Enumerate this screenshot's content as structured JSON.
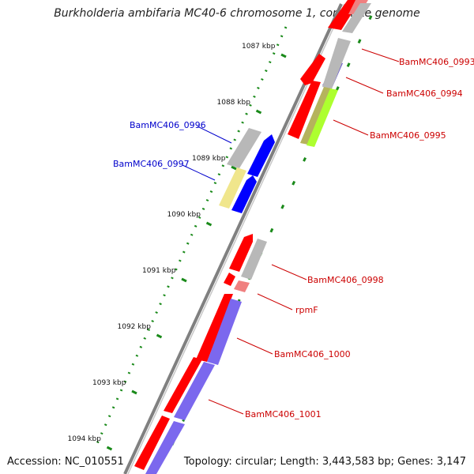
{
  "title": "Burkholderia ambifaria MC40-6 chromosome 1, complete genome",
  "accession_label": "Accession: NC_010551",
  "topology_text": "Topology: circular; Length: 3,443,583 bp; Genes: 3,147",
  "colors": {
    "forward_cds": "#ff0000",
    "reverse_cds": "#ff0000",
    "rna": "#f08080",
    "backbone": "#808080",
    "tick": "#1a8a1a",
    "label_red": "#cc0000",
    "label_blue": "#0000cc",
    "gray_feature": "#b8b8b8",
    "blue_feature": "#0000ff",
    "purple_feature": "#7b68ee",
    "lime_feature": "#adff2f",
    "olive_feature": "#b5b35c",
    "yellow_feature": "#f0e68c"
  },
  "scale_labels": [
    "1087 kbp",
    "1088 kbp",
    "1089 kbp",
    "1090 kbp",
    "1091 kbp",
    "1092 kbp",
    "1093 kbp",
    "1094 kbp"
  ],
  "gene_labels": [
    {
      "name": "BamMC406_0993",
      "color": "red"
    },
    {
      "name": "BamMC406_0994",
      "color": "red"
    },
    {
      "name": "BamMC406_0995",
      "color": "red"
    },
    {
      "name": "BamMC406_0996",
      "color": "blue"
    },
    {
      "name": "BamMC406_0997",
      "color": "blue"
    },
    {
      "name": "BamMC406_0998",
      "color": "red"
    },
    {
      "name": "rpmF",
      "color": "red"
    },
    {
      "name": "BamMC406_1000",
      "color": "red"
    },
    {
      "name": "BamMC406_1001",
      "color": "red"
    }
  ]
}
